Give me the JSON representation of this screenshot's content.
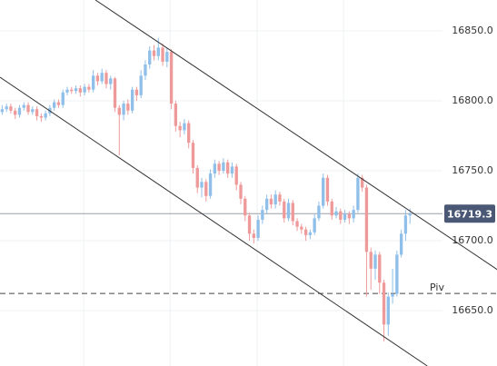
{
  "chart_data": {
    "type": "candlestick",
    "xlim": [
      -0.5,
      101.5
    ],
    "ylim": [
      16610.4,
      16872.1
    ],
    "yticks": [
      {
        "value": 16650,
        "label": "16650.0"
      },
      {
        "value": 16700,
        "label": "16700.0"
      },
      {
        "value": 16750,
        "label": "16750.0"
      },
      {
        "value": 16800,
        "label": "16800.0"
      },
      {
        "value": 16850,
        "label": "16850.0"
      }
    ],
    "xgrid": [
      18.8,
      38.7,
      58.8,
      78.7
    ],
    "grid": true,
    "up_color": "#90bfe9",
    "down_color": "#ef9a9a",
    "open": [
      16792,
      16794,
      16796,
      16793,
      16790,
      16795,
      16797,
      16792,
      16794,
      16789,
      16788,
      16791,
      16795,
      16799,
      16797,
      16806,
      16808,
      16807,
      16809,
      16806,
      16810,
      16808,
      16818,
      16814,
      16820,
      16812,
      16816,
      16795,
      16790,
      16798,
      16793,
      16808,
      16804,
      16818,
      16826,
      16836,
      16832,
      16838,
      16828,
      16835,
      16798,
      16782,
      16779,
      16784,
      16770,
      16752,
      16738,
      16742,
      16732,
      16748,
      16755,
      16750,
      16756,
      16748,
      16753,
      16740,
      16730,
      16718,
      16705,
      16702,
      16715,
      16722,
      16730,
      16726,
      16733,
      16728,
      16716,
      16727,
      16714,
      16710,
      16708,
      16704,
      16706,
      16716,
      16725,
      16745,
      16728,
      16718,
      16721,
      16715,
      16719,
      16716,
      16722,
      16745,
      16738,
      16692,
      16680,
      16690,
      16670,
      16640,
      16660,
      16662,
      16690,
      16705,
      16718
    ],
    "high": [
      16797,
      16798,
      16798,
      16795,
      16797,
      16799,
      16799,
      16796,
      16796,
      16791,
      16793,
      16797,
      16801,
      16801,
      16808,
      16810,
      16810,
      16811,
      16811,
      16812,
      16812,
      16822,
      16820,
      16823,
      16822,
      16818,
      16817,
      16797,
      16800,
      16801,
      16810,
      16810,
      16822,
      16829,
      16839,
      16840,
      16845,
      16841,
      16838,
      16837,
      16800,
      16785,
      16787,
      16786,
      16772,
      16754,
      16745,
      16744,
      16751,
      16758,
      16757,
      16759,
      16758,
      16756,
      16755,
      16742,
      16732,
      16720,
      16708,
      16718,
      16725,
      16733,
      16733,
      16736,
      16735,
      16730,
      16730,
      16729,
      16716,
      16712,
      16710,
      16708,
      16719,
      16728,
      16748,
      16747,
      16730,
      16724,
      16723,
      16722,
      16721,
      16725,
      16748,
      16747,
      16740,
      16695,
      16693,
      16692,
      16672,
      16663,
      16680,
      16693,
      16708,
      16722,
      16723
    ],
    "low": [
      16790,
      16792,
      16791,
      16787,
      16788,
      16793,
      16790,
      16790,
      16786,
      16785,
      16786,
      16789,
      16793,
      16795,
      16795,
      16804,
      16805,
      16805,
      16803,
      16804,
      16806,
      16806,
      16811,
      16812,
      16809,
      16808,
      16792,
      16761,
      16786,
      16790,
      16791,
      16800,
      16802,
      16815,
      16823,
      16829,
      16829,
      16825,
      16824,
      16794,
      16778,
      16774,
      16776,
      16766,
      16748,
      16734,
      16731,
      16728,
      16730,
      16745,
      16747,
      16748,
      16745,
      16745,
      16736,
      16726,
      16714,
      16700,
      16698,
      16700,
      16712,
      16719,
      16723,
      16723,
      16725,
      16713,
      16714,
      16711,
      16707,
      16705,
      16700,
      16701,
      16704,
      16714,
      16723,
      16725,
      16715,
      16716,
      16712,
      16713,
      16712,
      16713,
      16720,
      16735,
      16660,
      16665,
      16672,
      16662,
      16628,
      16632,
      16655,
      16660,
      16688,
      16700,
      16712
    ],
    "close": [
      16794,
      16796,
      16793,
      16790,
      16795,
      16797,
      16792,
      16794,
      16789,
      16788,
      16791,
      16795,
      16799,
      16797,
      16806,
      16808,
      16807,
      16809,
      16806,
      16810,
      16808,
      16818,
      16814,
      16820,
      16812,
      16816,
      16795,
      16790,
      16798,
      16793,
      16808,
      16804,
      16818,
      16826,
      16836,
      16832,
      16838,
      16828,
      16835,
      16798,
      16782,
      16779,
      16784,
      16770,
      16752,
      16738,
      16742,
      16732,
      16748,
      16755,
      16750,
      16756,
      16748,
      16753,
      16740,
      16730,
      16718,
      16705,
      16702,
      16715,
      16722,
      16730,
      16726,
      16733,
      16728,
      16716,
      16727,
      16714,
      16710,
      16708,
      16704,
      16706,
      16716,
      16725,
      16745,
      16728,
      16718,
      16721,
      16715,
      16719,
      16716,
      16722,
      16745,
      16738,
      16692,
      16680,
      16690,
      16670,
      16640,
      16660,
      16662,
      16690,
      16705,
      16718,
      16719.3
    ],
    "last_price": 16719.3,
    "last_price_color": "#4a5875",
    "pivot": {
      "value": 16662.3,
      "label": "Piv"
    },
    "trendlines": [
      {
        "points": [
          [
            21.5,
            16872.1
          ],
          [
            114.2,
            16679.2
          ]
        ]
      },
      {
        "points": [
          [
            -0.5,
            16816.9
          ],
          [
            98.0,
            16610.4
          ]
        ]
      }
    ]
  }
}
